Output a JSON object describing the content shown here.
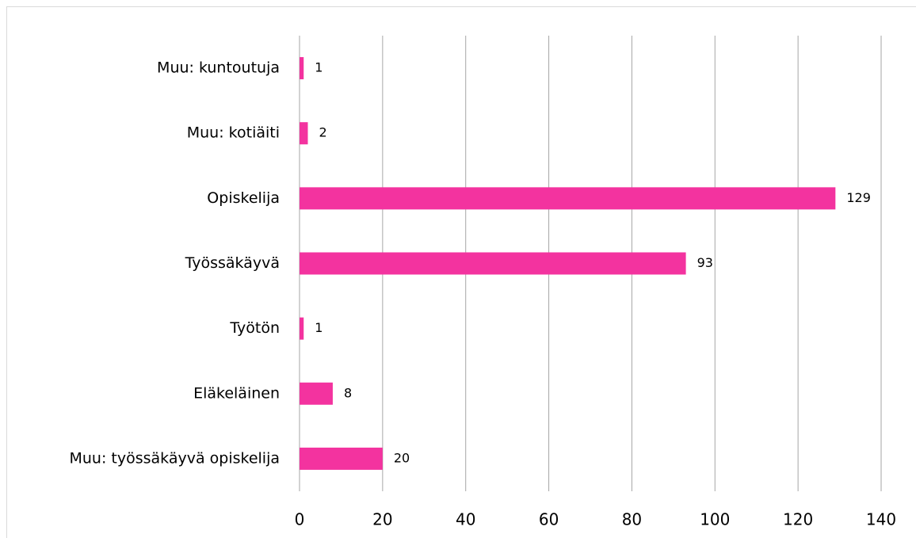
{
  "chart_data": {
    "type": "barh",
    "categories": [
      "Muu: kuntoutuja",
      "Muu: kotiäiti",
      "Opiskelija",
      "Työssäkäyvä",
      "Työtön",
      "Eläkeläinen",
      "Muu: työssäkäyvä opiskelija"
    ],
    "values": [
      1,
      2,
      129,
      93,
      1,
      8,
      20
    ],
    "color": "#f3339f",
    "xlim": [
      0,
      140
    ],
    "xticks": [
      0,
      20,
      40,
      60,
      80,
      100,
      120,
      140
    ],
    "grid": true
  }
}
